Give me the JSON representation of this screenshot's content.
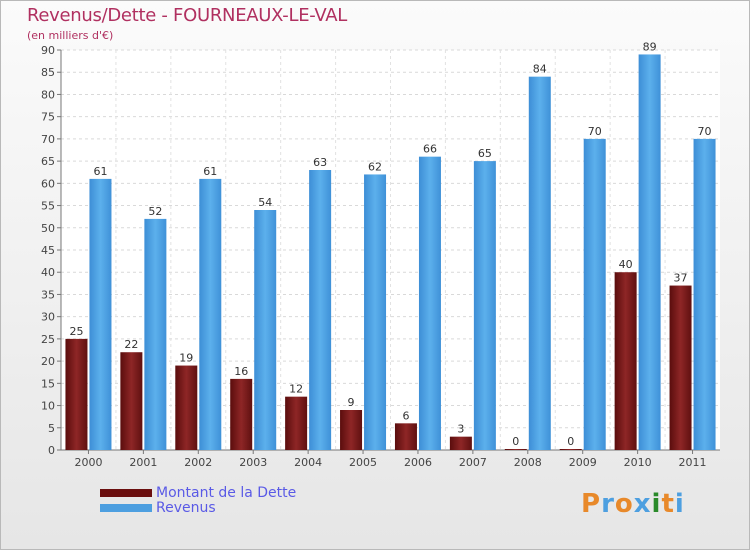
{
  "header": {
    "title": "Revenus/Dette - FOURNEAUX-LE-VAL",
    "subtitle": "(en milliers d'€)"
  },
  "chart_data": {
    "type": "bar",
    "categories": [
      "2000",
      "2001",
      "2002",
      "2003",
      "2004",
      "2005",
      "2006",
      "2007",
      "2008",
      "2009",
      "2010",
      "2011"
    ],
    "series": [
      {
        "name": "Montant de la Dette",
        "color": "#7a1a1a",
        "values": [
          25,
          22,
          19,
          16,
          12,
          9,
          6,
          3,
          0,
          0,
          40,
          37
        ]
      },
      {
        "name": "Revenus",
        "color": "#4d9fe0",
        "values": [
          61,
          52,
          61,
          54,
          63,
          62,
          66,
          65,
          84,
          70,
          89,
          70
        ]
      }
    ],
    "ylim": [
      0,
      90
    ],
    "yticks": [
      0,
      5,
      10,
      15,
      20,
      25,
      30,
      35,
      40,
      45,
      50,
      55,
      60,
      65,
      70,
      75,
      80,
      85,
      90
    ],
    "grid": true,
    "legend_position": "bottom-left",
    "data_labels": true
  },
  "legend": {
    "items": [
      {
        "label": "Montant de la Dette",
        "color": "#6b0f0f"
      },
      {
        "label": "Revenus",
        "color": "#4d9fe0"
      }
    ]
  },
  "logo": {
    "text": "Proxiti",
    "letter_colors": [
      "#e8892a",
      "#4d9fe0",
      "#e8892a",
      "#4d9fe0",
      "#2a8a2a",
      "#e8892a",
      "#4d9fe0"
    ]
  }
}
